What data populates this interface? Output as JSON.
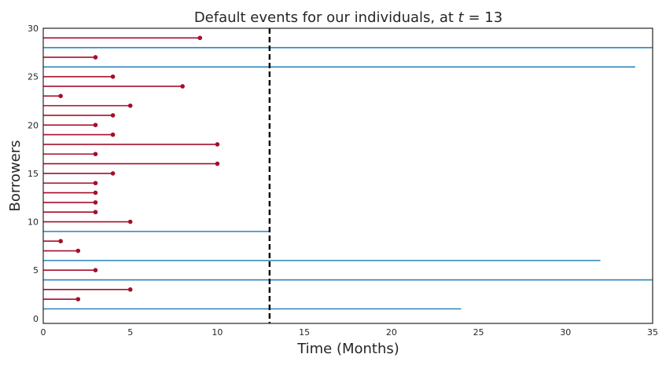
{
  "chart_data": {
    "type": "lifelines",
    "title_prefix": "Default events for our individuals, at ",
    "title_var": "t",
    "title_suffix": " = 13",
    "xlabel": "Time (Months)",
    "ylabel": "Borrowers",
    "xlim": [
      0,
      35
    ],
    "ylim": [
      -0.5,
      30
    ],
    "xticks": [
      0,
      5,
      10,
      15,
      20,
      25,
      30,
      35
    ],
    "yticks": [
      0,
      5,
      10,
      15,
      20,
      25,
      30
    ],
    "cutoff": 13,
    "grid": false,
    "colors": {
      "defaulted": "#a50f2b",
      "censored": "#2b83ba",
      "cutoff": "#000000"
    },
    "lifetimes": [
      24,
      2,
      5,
      35,
      3,
      32,
      2,
      1,
      13,
      5,
      3,
      3,
      3,
      3,
      4,
      10,
      3,
      10,
      4,
      3,
      4,
      5,
      1,
      8,
      4,
      34,
      3,
      35,
      9
    ],
    "defaulted": [
      false,
      true,
      true,
      false,
      true,
      false,
      true,
      true,
      false,
      true,
      true,
      true,
      true,
      true,
      true,
      true,
      true,
      true,
      true,
      true,
      true,
      true,
      true,
      true,
      true,
      false,
      true,
      false,
      true
    ]
  }
}
